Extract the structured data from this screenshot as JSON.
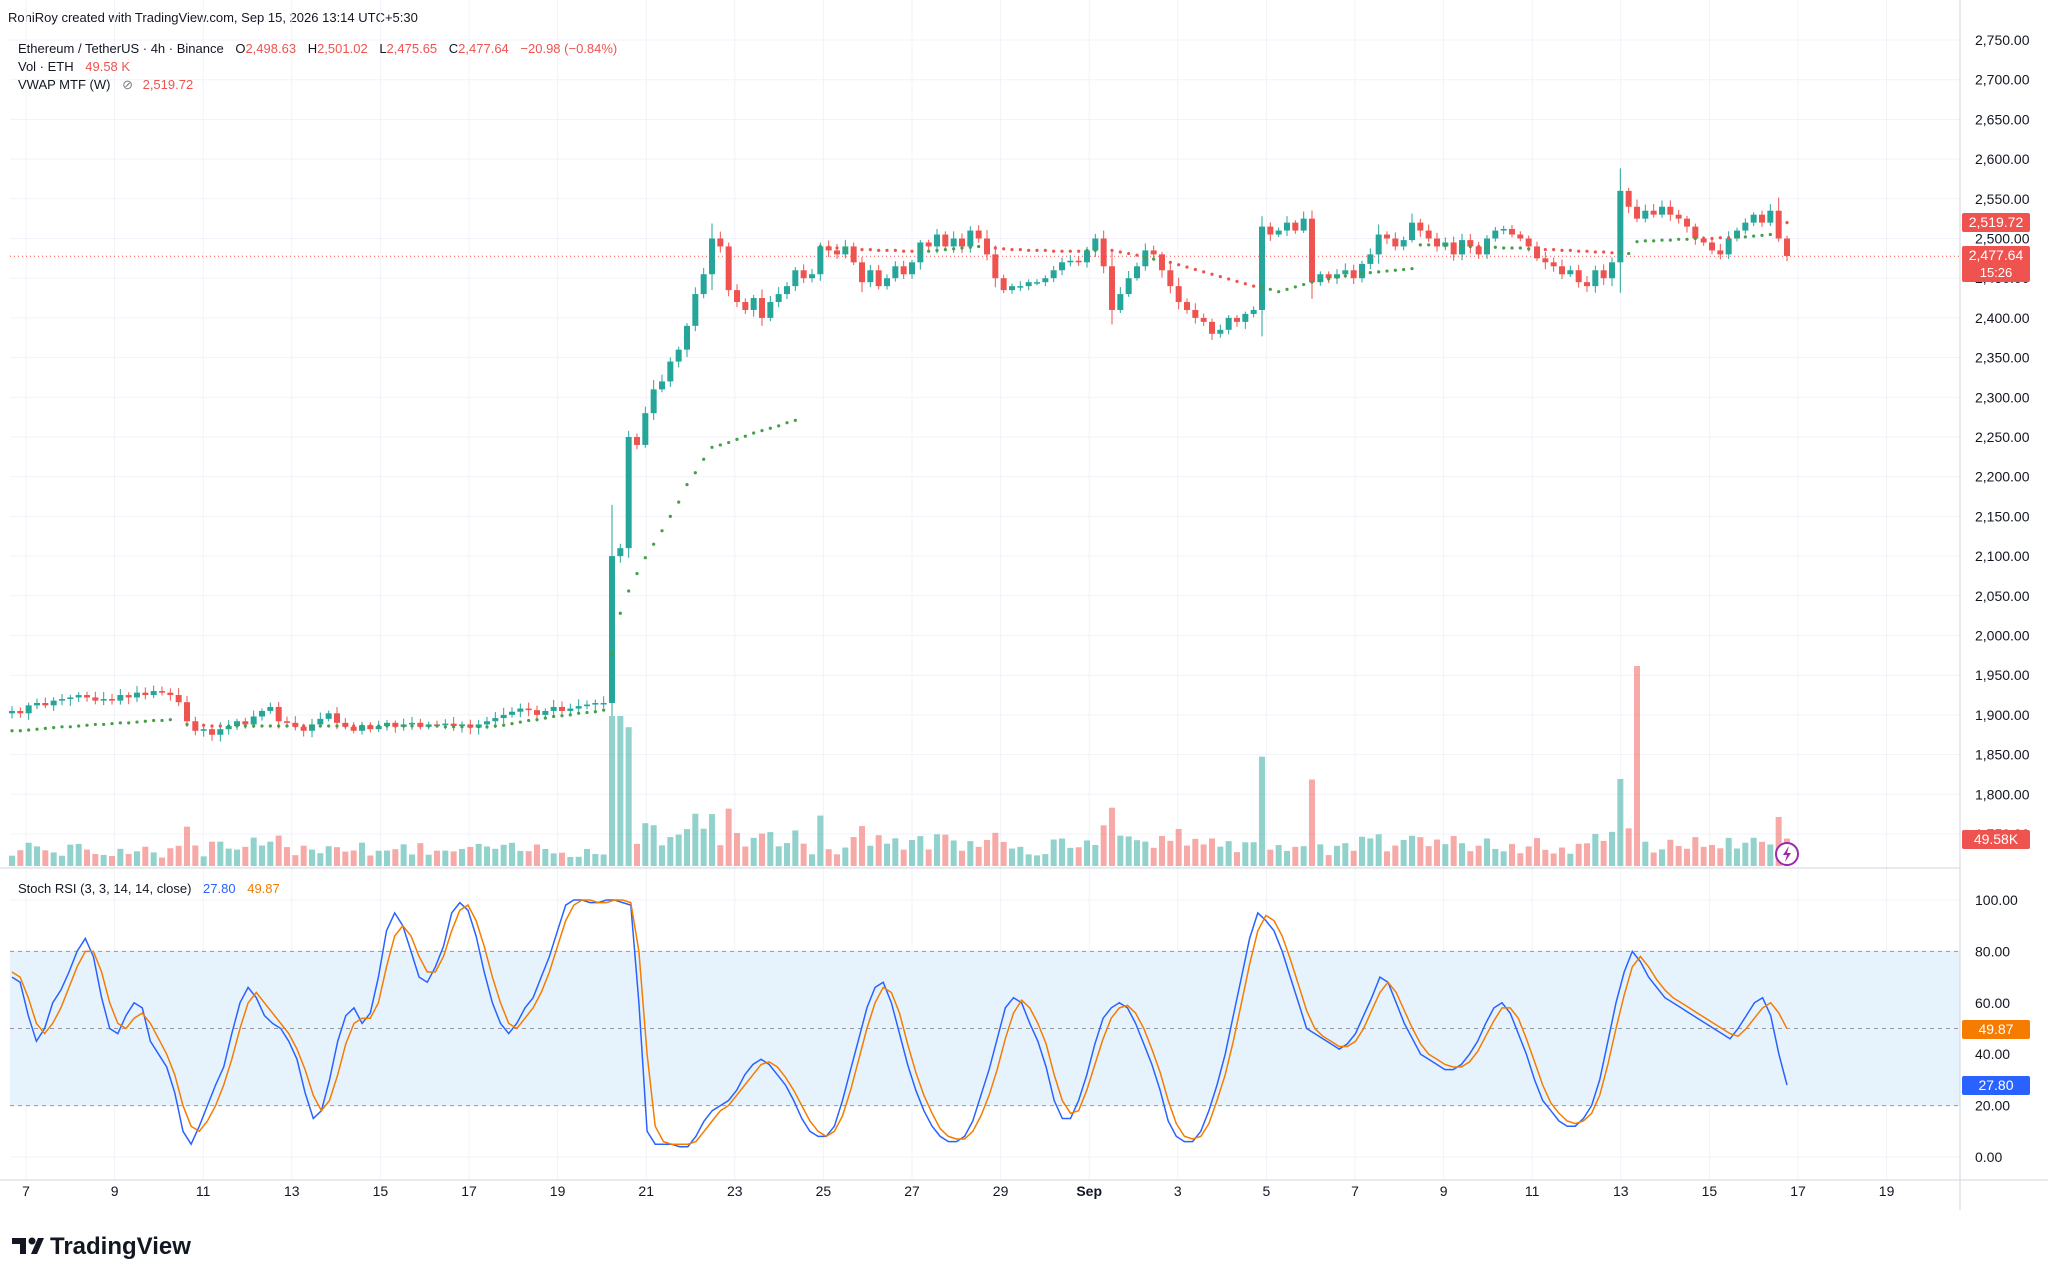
{
  "header": {
    "created_by": "RoniRoy created with TradingView.com, Sep 15, 2026 13:14 UTC+5:30"
  },
  "legend": {
    "symbol": "Ethereum / TetherUS · 4h · Binance",
    "o_label": "O",
    "o_value": "2,498.63",
    "h_label": "H",
    "h_value": "2,501.02",
    "l_label": "L",
    "l_value": "2,475.65",
    "c_label": "C",
    "c_value": "2,477.64",
    "change": "−20.98 (−0.84%)",
    "vol_label": "Vol · ETH",
    "vol_value": "49.58 K",
    "vwap_label": "VWAP MTF (W)",
    "vwap_icon": "⊘",
    "vwap_value": "2,519.72"
  },
  "stoch_legend": {
    "label": "Stoch RSI (3, 3, 14, 14, close)",
    "k_value": "27.80",
    "d_value": "49.87"
  },
  "price_axis": {
    "ticks": [
      "2,750.00",
      "2,700.00",
      "2,650.00",
      "2,600.00",
      "2,550.00",
      "2,500.00",
      "2,450.00",
      "2,400.00",
      "2,350.00",
      "2,300.00",
      "2,250.00",
      "2,200.00",
      "2,150.00",
      "2,100.00",
      "2,050.00",
      "2,000.00",
      "1,950.00",
      "1,900.00",
      "1,850.00",
      "1,800.00",
      "1,750.00"
    ],
    "vwap_badge": "2,519.72",
    "price_badge": "2,477.64",
    "countdown_badge": "15:26",
    "volume_badge": "49.58K"
  },
  "rsi_axis": {
    "ticks": [
      "100.00",
      "80.00",
      "60.00",
      "40.00",
      "20.00",
      "0.00"
    ],
    "d_badge": "49.87",
    "k_badge": "27.80"
  },
  "time_axis": {
    "labels": [
      "7",
      "9",
      "11",
      "13",
      "15",
      "17",
      "19",
      "21",
      "23",
      "25",
      "27",
      "29",
      "Sep",
      "3",
      "5",
      "7",
      "9",
      "11",
      "13",
      "15",
      "17",
      "19"
    ]
  },
  "branding": {
    "logo_text": "TradingView"
  },
  "colors": {
    "up": "#26a69a",
    "down": "#ef5350",
    "vwap_up": "#43a047",
    "vwap_down": "#ef5350",
    "k_line": "#2962ff",
    "d_line": "#f57c00",
    "band": "#e3f2fd"
  },
  "chart_data": [
    {
      "type": "candlestick",
      "symbol": "ETHUSDT",
      "interval": "4h",
      "ylim": [
        1740,
        2760
      ],
      "yscale": "linear",
      "first_bar_date": "Aug 6",
      "last_bar_date": "Sep 15",
      "closes": [
        1905,
        1902,
        1912,
        1915,
        1912,
        1918,
        1920,
        1922,
        1925,
        1922,
        1918,
        1920,
        1918,
        1925,
        1922,
        1928,
        1925,
        1930,
        1928,
        1925,
        1916,
        1892,
        1880,
        1882,
        1875,
        1882,
        1886,
        1892,
        1888,
        1898,
        1905,
        1910,
        1892,
        1890,
        1885,
        1880,
        1888,
        1895,
        1902,
        1890,
        1885,
        1880,
        1887,
        1882,
        1886,
        1890,
        1885,
        1888,
        1890,
        1885,
        1888,
        1887,
        1889,
        1886,
        1888,
        1884,
        1888,
        1892,
        1896,
        1900,
        1904,
        1908,
        1906,
        1900,
        1905,
        1910,
        1905,
        1908,
        1911,
        1913,
        1915,
        1915,
        2100,
        2110,
        2250,
        2240,
        2280,
        2310,
        2320,
        2345,
        2360,
        2390,
        2430,
        2455,
        2500,
        2490,
        2435,
        2420,
        2410,
        2425,
        2400,
        2420,
        2430,
        2440,
        2460,
        2450,
        2455,
        2490,
        2485,
        2480,
        2490,
        2470,
        2445,
        2460,
        2440,
        2450,
        2465,
        2455,
        2470,
        2495,
        2490,
        2505,
        2490,
        2500,
        2490,
        2510,
        2500,
        2480,
        2450,
        2435,
        2440,
        2440,
        2445,
        2445,
        2450,
        2460,
        2470,
        2472,
        2470,
        2485,
        2500,
        2465,
        2410,
        2430,
        2450,
        2465,
        2485,
        2480,
        2460,
        2440,
        2420,
        2410,
        2400,
        2395,
        2380,
        2385,
        2400,
        2395,
        2405,
        2410,
        2515,
        2505,
        2510,
        2520,
        2510,
        2525,
        2445,
        2455,
        2450,
        2455,
        2460,
        2450,
        2468,
        2480,
        2505,
        2500,
        2490,
        2498,
        2520,
        2510,
        2500,
        2490,
        2495,
        2480,
        2498,
        2490,
        2480,
        2500,
        2510,
        2512,
        2505,
        2500,
        2490,
        2475,
        2470,
        2465,
        2455,
        2460,
        2445,
        2440,
        2460,
        2450,
        2470,
        2560,
        2540,
        2525,
        2535,
        2530,
        2540,
        2530,
        2525,
        2515,
        2500,
        2495,
        2485,
        2480,
        2500,
        2510,
        2520,
        2530,
        2520,
        2535,
        2500,
        2478
      ],
      "vwap_weekly": [
        1880,
        1880,
        1881,
        1882,
        1883,
        1884,
        1885,
        1885,
        1886,
        1887,
        1888,
        1888,
        1889,
        1890,
        1890,
        1891,
        1892,
        1893,
        1893,
        1894,
        null,
        1888,
        1887,
        1887,
        1886,
        1886,
        1886,
        1886,
        1886,
        1886,
        1886,
        1886,
        1886,
        1886,
        1886,
        1886,
        1886,
        1886,
        1886,
        1886,
        1886,
        1886,
        1886,
        1886,
        1886,
        1886,
        1886,
        1886,
        1886,
        1886,
        1886,
        1886,
        1885,
        1885,
        1885,
        1885,
        1885,
        1885,
        1886,
        1887,
        1889,
        1891,
        1893,
        1894,
        1896,
        1898,
        1899,
        1900,
        1902,
        1903,
        1904,
        1906,
        1977,
        2028,
        2056,
        2078,
        2098,
        2115,
        2132,
        2150,
        2168,
        2190,
        2205,
        2222,
        2237,
        2240,
        2243,
        2247,
        2251,
        2255,
        2258,
        2261,
        2264,
        2268,
        2271,
        null,
        null,
        2490,
        2489,
        2488,
        2487,
        2487,
        2486,
        2486,
        2485,
        2485,
        2485,
        2484,
        2484,
        2484,
        2484,
        2485,
        2486,
        2487,
        2488,
        2489,
        2490,
        2489,
        2488,
        2487,
        2486,
        2486,
        2485,
        2485,
        2485,
        2484,
        2484,
        2484,
        2484,
        2485,
        2485,
        2486,
        2485,
        2483,
        2481,
        2479,
        2476,
        2474,
        2472,
        2470,
        2467,
        2464,
        2461,
        2458,
        2455,
        2452,
        2449,
        2446,
        2443,
        2440,
        2438,
        2436,
        2433,
        2436,
        2439,
        2442,
        2445,
        2447,
        2449,
        2451,
        2453,
        2455,
        2456,
        2457,
        2458,
        2459,
        2460,
        2461,
        2462,
        2492,
        2492,
        2492,
        2491,
        2491,
        2490,
        2490,
        2490,
        2489,
        2489,
        2488,
        2488,
        2488,
        2487,
        2487,
        2486,
        2486,
        2485,
        2485,
        2484,
        2484,
        2483,
        2483,
        2482,
        2482,
        2481,
        2496,
        2497,
        2497,
        2498,
        2498,
        2499,
        2499,
        2500,
        2500,
        2500,
        2501,
        2501,
        2502,
        2502,
        2503,
        2504,
        2505,
        2506,
        2520
      ],
      "volume_last_k": 49.58,
      "last_price": 2477.64,
      "vwap_last": 2519.72
    },
    {
      "type": "line",
      "title": "Stoch RSI (3, 3, 14, 14, close)",
      "ylim": [
        -10,
        110
      ],
      "bands": [
        20,
        80
      ],
      "series": [
        {
          "name": "K",
          "values": [
            70,
            68,
            55,
            45,
            50,
            60,
            65,
            72,
            80,
            85,
            78,
            62,
            50,
            48,
            55,
            60,
            58,
            45,
            40,
            35,
            25,
            10,
            5,
            12,
            20,
            28,
            35,
            48,
            60,
            66,
            62,
            55,
            52,
            50,
            45,
            38,
            25,
            15,
            18,
            30,
            45,
            55,
            58,
            52,
            56,
            70,
            88,
            95,
            90,
            80,
            70,
            68,
            74,
            82,
            95,
            99,
            96,
            86,
            72,
            60,
            52,
            48,
            52,
            58,
            62,
            70,
            78,
            88,
            98,
            100,
            100,
            99,
            99,
            100,
            100,
            99,
            98,
            60,
            10,
            5,
            5,
            5,
            4,
            4,
            8,
            14,
            18,
            20,
            22,
            26,
            32,
            36,
            38,
            36,
            32,
            28,
            22,
            15,
            10,
            8,
            8,
            12,
            22,
            34,
            46,
            58,
            66,
            68,
            60,
            48,
            36,
            26,
            18,
            12,
            8,
            6,
            6,
            8,
            14,
            24,
            34,
            46,
            58,
            62,
            60,
            52,
            45,
            35,
            22,
            15,
            15,
            22,
            32,
            44,
            54,
            58,
            60,
            58,
            52,
            44,
            36,
            26,
            14,
            8,
            6,
            6,
            10,
            18,
            28,
            40,
            55,
            70,
            85,
            95,
            92,
            88,
            80,
            70,
            60,
            50,
            48,
            46,
            44,
            42,
            44,
            48,
            55,
            62,
            70,
            68,
            60,
            52,
            46,
            40,
            38,
            36,
            34,
            34,
            36,
            40,
            45,
            52,
            58,
            60,
            56,
            48,
            40,
            30,
            22,
            18,
            14,
            12,
            12,
            15,
            20,
            30,
            45,
            60,
            72,
            80,
            76,
            70,
            66,
            62,
            60,
            58,
            56,
            54,
            52,
            50,
            48,
            46,
            50,
            55,
            60,
            62,
            55,
            40,
            28
          ]
        },
        {
          "name": "D",
          "values": [
            72,
            70,
            62,
            52,
            48,
            52,
            58,
            66,
            74,
            80,
            80,
            72,
            60,
            52,
            50,
            54,
            56,
            52,
            46,
            40,
            32,
            20,
            12,
            10,
            14,
            20,
            28,
            38,
            50,
            60,
            64,
            60,
            56,
            52,
            48,
            42,
            34,
            24,
            18,
            22,
            32,
            44,
            52,
            54,
            54,
            60,
            74,
            86,
            90,
            86,
            78,
            72,
            72,
            78,
            88,
            96,
            98,
            92,
            82,
            70,
            60,
            52,
            50,
            54,
            58,
            64,
            72,
            82,
            92,
            98,
            100,
            100,
            99,
            99,
            100,
            100,
            99,
            80,
            40,
            12,
            6,
            5,
            5,
            5,
            6,
            10,
            14,
            18,
            20,
            24,
            28,
            32,
            36,
            37,
            35,
            31,
            26,
            20,
            14,
            10,
            8,
            10,
            16,
            26,
            38,
            50,
            60,
            66,
            64,
            56,
            44,
            33,
            24,
            17,
            11,
            8,
            7,
            7,
            10,
            16,
            24,
            34,
            46,
            56,
            61,
            58,
            52,
            44,
            32,
            22,
            17,
            18,
            26,
            36,
            46,
            54,
            58,
            59,
            56,
            50,
            42,
            33,
            22,
            13,
            8,
            7,
            8,
            13,
            22,
            32,
            45,
            60,
            75,
            88,
            94,
            92,
            86,
            77,
            67,
            57,
            50,
            47,
            45,
            43,
            43,
            45,
            50,
            57,
            64,
            68,
            64,
            57,
            50,
            44,
            40,
            38,
            36,
            35,
            35,
            37,
            41,
            47,
            53,
            58,
            58,
            54,
            46,
            37,
            28,
            21,
            17,
            14,
            13,
            14,
            17,
            24,
            36,
            50,
            63,
            74,
            78,
            74,
            69,
            65,
            62,
            60,
            58,
            56,
            54,
            52,
            50,
            48,
            47,
            50,
            54,
            58,
            60,
            56,
            49.87
          ]
        }
      ],
      "k_last": 27.8,
      "d_last": 49.87
    }
  ]
}
